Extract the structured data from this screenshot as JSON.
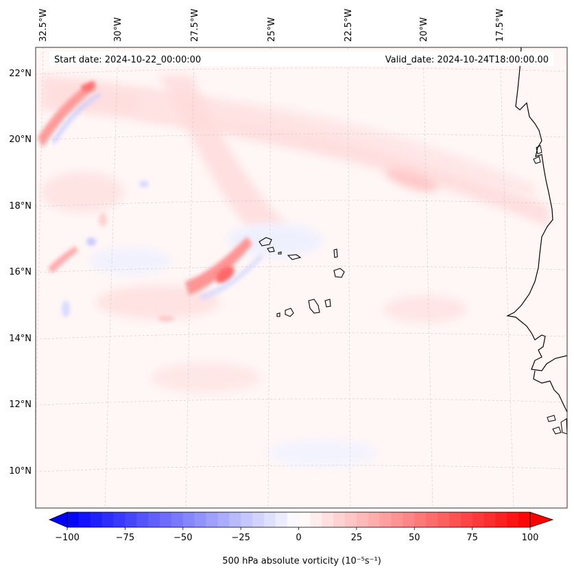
{
  "header": {
    "start_date": "Start date: 2024-10-22_00:00:00",
    "valid_date": "Valid_date: 2024-10-24T18:00:00.00"
  },
  "map": {
    "projection": "lambert-conformal",
    "lon_labels": [
      "32.5°W",
      "30°W",
      "27.5°W",
      "25°W",
      "22.5°W",
      "20°W",
      "17.5°W"
    ],
    "lat_labels": [
      "22°N",
      "20°N",
      "18°N",
      "16°N",
      "14°N",
      "12°N",
      "10°N"
    ],
    "gridlines": true,
    "field": "500 hPa absolute vorticity",
    "features": [
      "west-african-coast",
      "cape-verde-islands"
    ]
  },
  "colorbar": {
    "label": "500 hPa absolute vorticity (10⁻⁵s⁻¹)",
    "ticks": [
      "−100",
      "−75",
      "−50",
      "−25",
      "0",
      "25",
      "50",
      "75",
      "100"
    ],
    "range": [
      -100,
      100
    ],
    "extend": "both",
    "colormap": "bwr",
    "negative_color": "#0000ff",
    "zero_color": "#ffffff",
    "positive_color": "#ff0000"
  }
}
